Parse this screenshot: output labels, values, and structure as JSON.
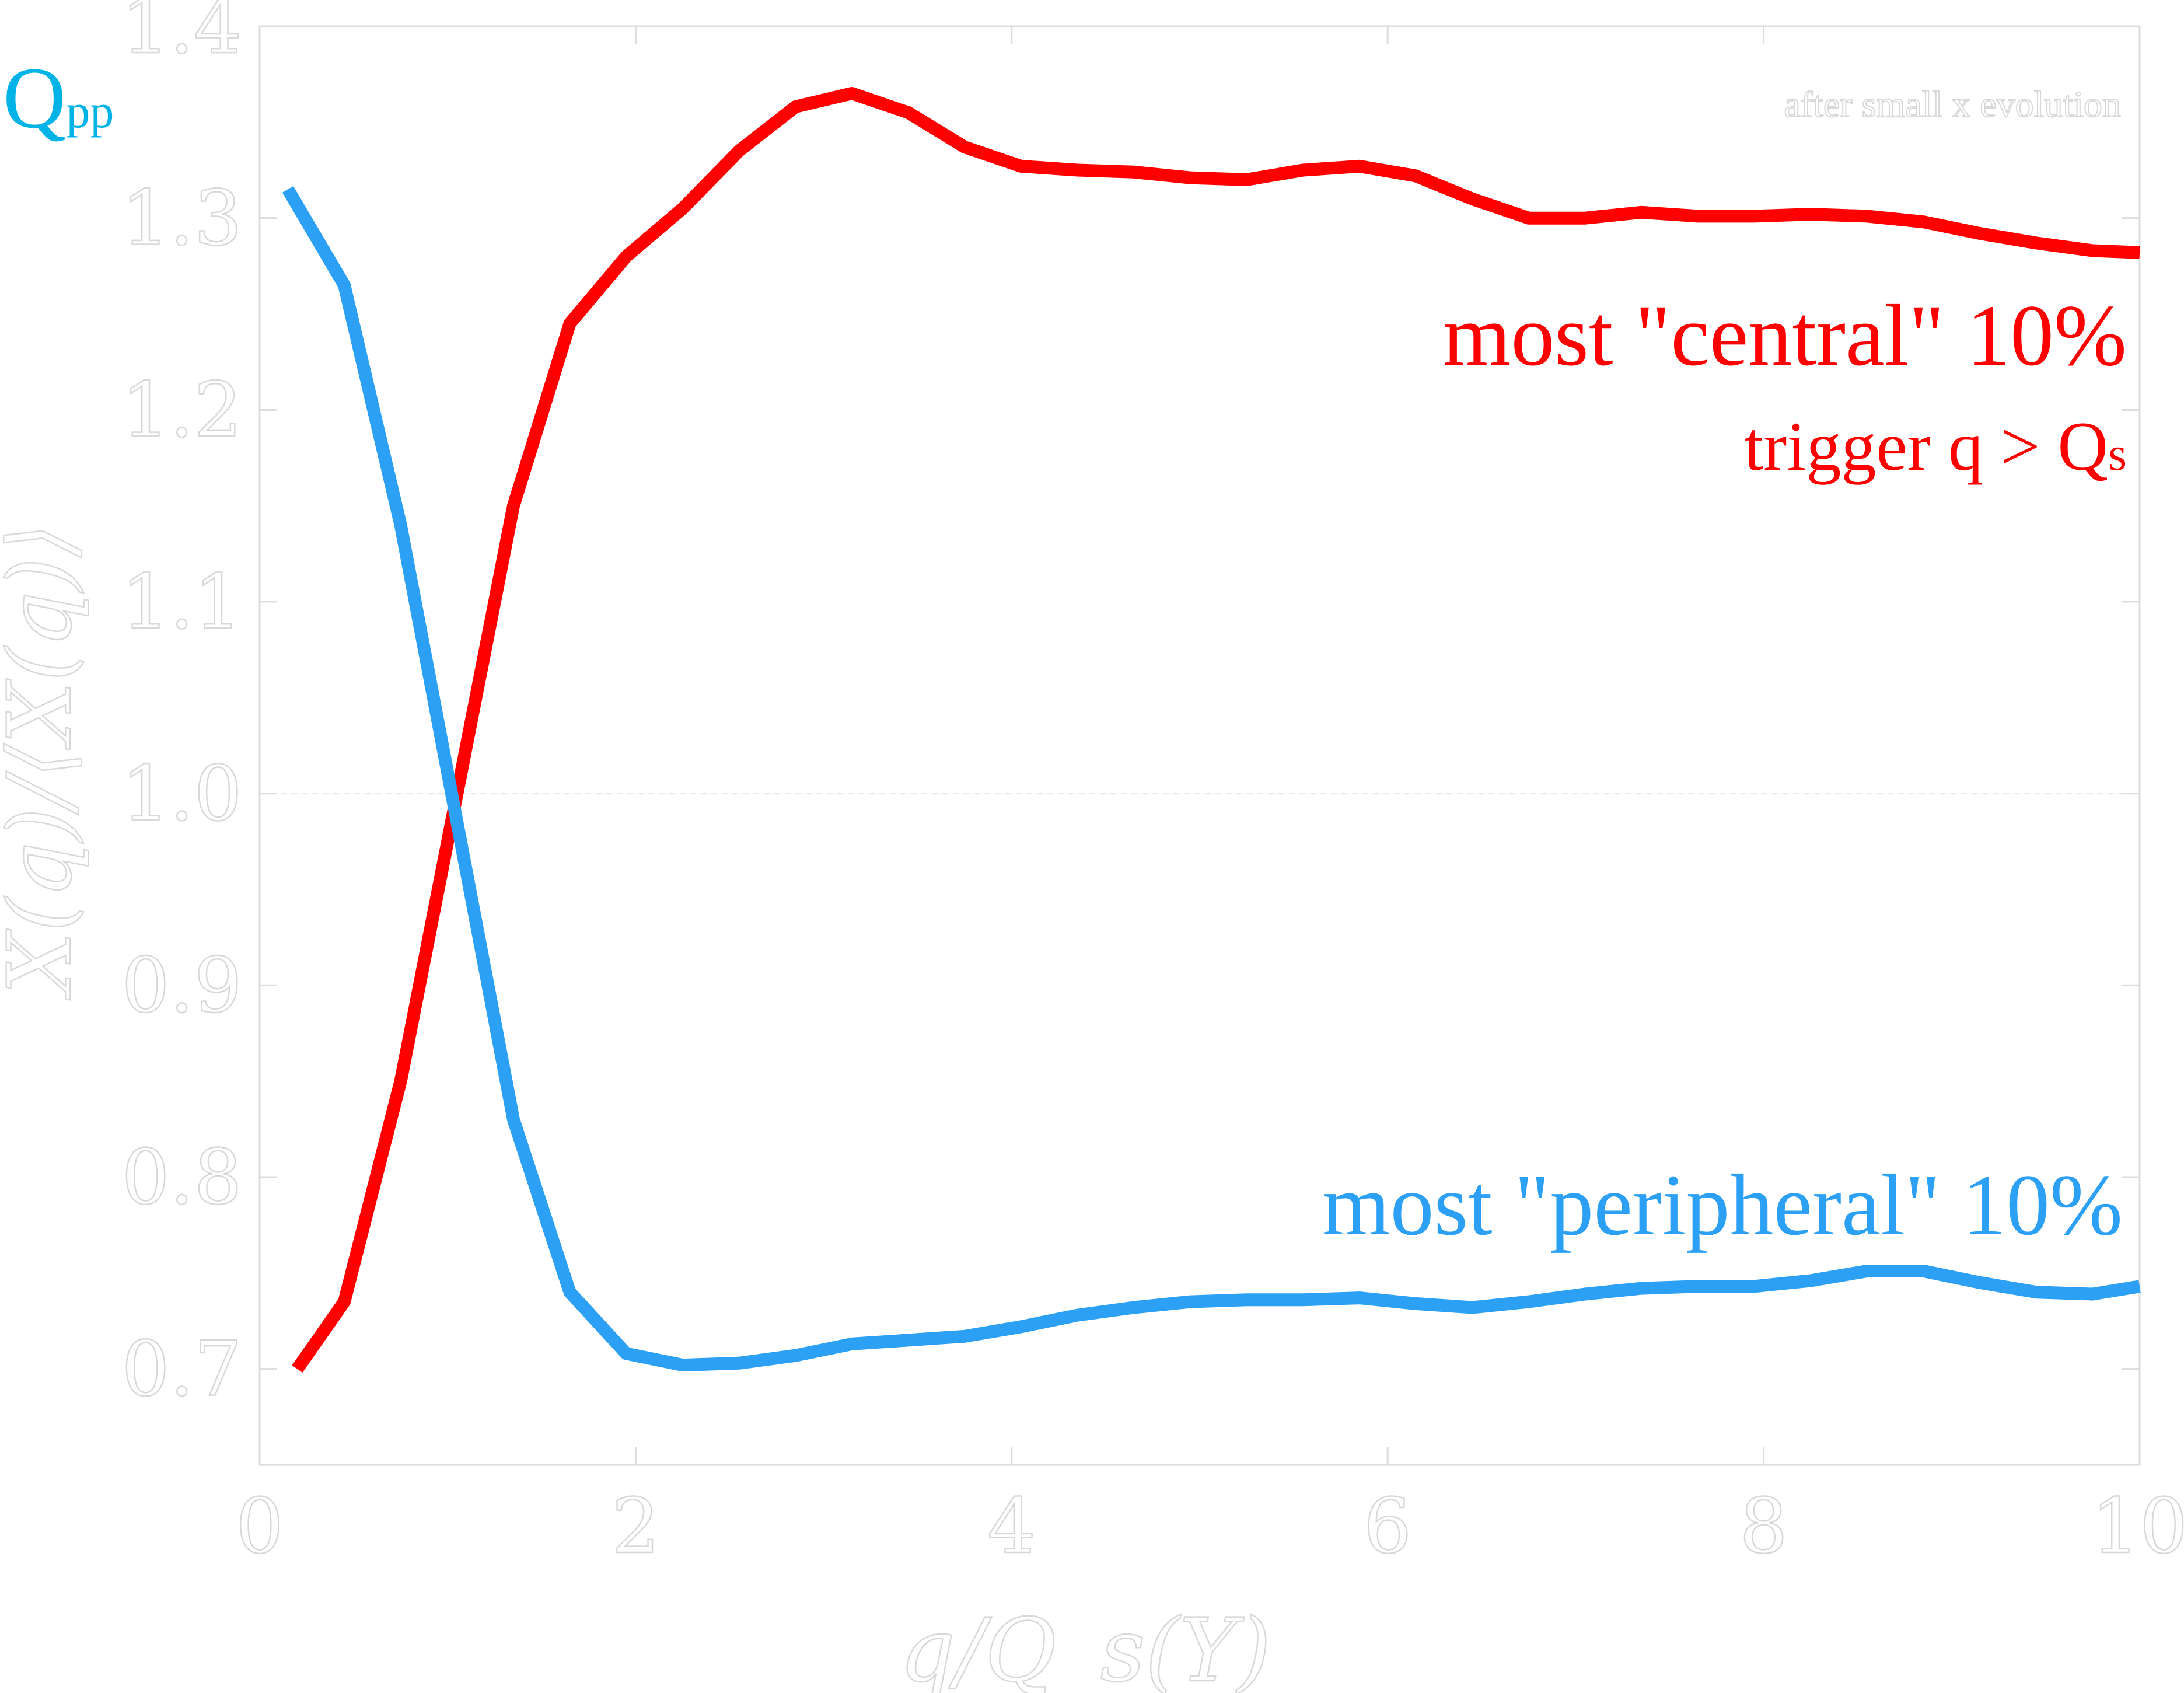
{
  "chart_data": {
    "type": "line",
    "xlabel": "q/Q_s(Y)",
    "ylabel": "X(q)/⟨X(q)⟩",
    "xlim": [
      0,
      10
    ],
    "ylim": [
      0.65,
      1.4
    ],
    "xticks": [
      0,
      2,
      4,
      6,
      8,
      10
    ],
    "yticks": [
      0.7,
      0.8,
      0.9,
      1.0,
      1.1,
      1.2,
      1.3,
      1.4
    ],
    "ytick_labels": [
      "0.7",
      "0.8",
      "0.9",
      "1.0",
      "1.1",
      "1.2",
      "1.3",
      "1.4"
    ],
    "xtick_labels": [
      "0",
      "2",
      "4",
      "6",
      "8",
      "10"
    ],
    "grid": false,
    "reference_line": 1.0,
    "corner_label": {
      "main": "Q",
      "sub": "pp"
    },
    "note": "after small x evolution",
    "series": [
      {
        "name": "most \"central\" 10%",
        "subtitle_main": "trigger q > Q",
        "subtitle_sub": "s",
        "color": "#ff0000",
        "x": [
          0.2,
          0.45,
          0.75,
          1.05,
          1.35,
          1.65,
          1.95,
          2.25,
          2.55,
          2.85,
          3.15,
          3.45,
          3.75,
          4.05,
          4.35,
          4.65,
          4.95,
          5.25,
          5.55,
          5.85,
          6.15,
          6.45,
          6.75,
          7.05,
          7.35,
          7.65,
          7.95,
          8.25,
          8.55,
          8.85,
          9.15,
          9.45,
          9.75,
          10.0
        ],
        "y": [
          0.7,
          0.735,
          0.85,
          1.0,
          1.15,
          1.245,
          1.28,
          1.305,
          1.335,
          1.358,
          1.365,
          1.355,
          1.337,
          1.327,
          1.325,
          1.324,
          1.321,
          1.32,
          1.325,
          1.327,
          1.322,
          1.31,
          1.3,
          1.3,
          1.303,
          1.301,
          1.301,
          1.302,
          1.301,
          1.298,
          1.292,
          1.287,
          1.283,
          1.282
        ]
      },
      {
        "name": "most \"peripheral\" 10%",
        "color": "#2ba0f4",
        "x": [
          0.15,
          0.45,
          0.75,
          1.05,
          1.35,
          1.65,
          1.95,
          2.25,
          2.55,
          2.85,
          3.15,
          3.45,
          3.75,
          4.05,
          4.35,
          4.65,
          4.95,
          5.25,
          5.55,
          5.85,
          6.15,
          6.45,
          6.75,
          7.05,
          7.35,
          7.65,
          7.95,
          8.25,
          8.55,
          8.85,
          9.15,
          9.45,
          9.75,
          10.0
        ],
        "y": [
          1.315,
          1.265,
          1.14,
          0.985,
          0.83,
          0.74,
          0.708,
          0.702,
          0.703,
          0.707,
          0.713,
          0.715,
          0.717,
          0.722,
          0.728,
          0.732,
          0.735,
          0.736,
          0.736,
          0.737,
          0.734,
          0.732,
          0.735,
          0.739,
          0.742,
          0.743,
          0.743,
          0.746,
          0.751,
          0.751,
          0.745,
          0.74,
          0.739,
          0.743
        ]
      }
    ],
    "colors": {
      "corner_label": "#00b3e6",
      "axis": "#dcdcdc",
      "reference_line": "#e6e6e6"
    }
  }
}
